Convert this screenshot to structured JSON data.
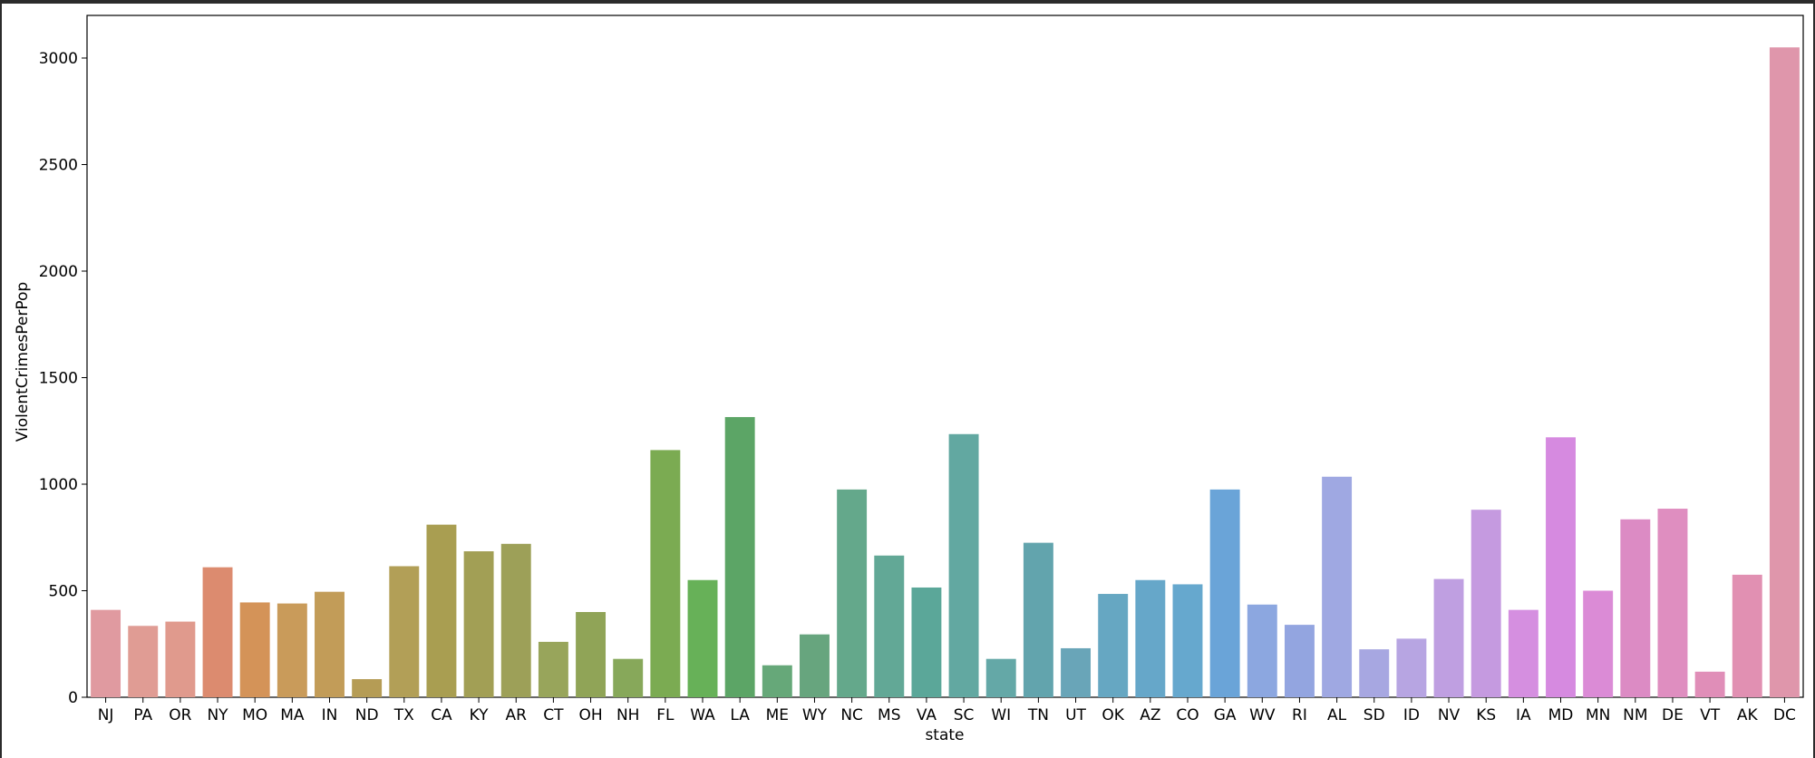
{
  "chart_data": {
    "type": "bar",
    "xlabel": "state",
    "ylabel": "ViolentCrimesPerPop",
    "ylim": [
      0,
      3200
    ],
    "yticks": [
      0,
      500,
      1000,
      1500,
      2000,
      2500,
      3000
    ],
    "grid": false,
    "legend": "none",
    "categories": [
      "NJ",
      "PA",
      "OR",
      "NY",
      "MO",
      "MA",
      "IN",
      "ND",
      "TX",
      "CA",
      "KY",
      "AR",
      "CT",
      "OH",
      "NH",
      "FL",
      "WA",
      "LA",
      "ME",
      "WY",
      "NC",
      "MS",
      "VA",
      "SC",
      "WI",
      "TN",
      "UT",
      "OK",
      "AZ",
      "CO",
      "GA",
      "WV",
      "RI",
      "AL",
      "SD",
      "ID",
      "NV",
      "KS",
      "IA",
      "MD",
      "MN",
      "NM",
      "DE",
      "VT",
      "AK",
      "DC"
    ],
    "values": [
      410,
      335,
      355,
      610,
      445,
      440,
      495,
      85,
      615,
      810,
      685,
      720,
      260,
      400,
      180,
      1160,
      550,
      1315,
      150,
      295,
      975,
      665,
      515,
      1235,
      180,
      725,
      230,
      485,
      550,
      530,
      975,
      435,
      340,
      1035,
      225,
      275,
      555,
      880,
      410,
      1220,
      500,
      835,
      885,
      120,
      575,
      3050
    ],
    "colors": [
      "#e09aa0",
      "#e09c94",
      "#e09a8d",
      "#dc8b6f",
      "#d49358",
      "#c99b5a",
      "#c29c58",
      "#b59c55",
      "#b29f57",
      "#a99e51",
      "#a29f55",
      "#9da058",
      "#98a55b",
      "#90a457",
      "#87a85a",
      "#7bab52",
      "#67b158",
      "#5ca566",
      "#66a879",
      "#67a57e",
      "#64a88b",
      "#62a896",
      "#5ba799",
      "#62a8a1",
      "#64a8a7",
      "#62a4ad",
      "#69a5b8",
      "#66a7c2",
      "#66a7c9",
      "#66a8ce",
      "#6aa4d8",
      "#8ca7e0",
      "#93a5e0",
      "#9fa8e2",
      "#a7a7e1",
      "#b7a5e2",
      "#bf9fe1",
      "#c59ae0",
      "#d58fe0",
      "#d68ae0",
      "#db8bd6",
      "#dc8bc4",
      "#df8ec0",
      "#e08eb8",
      "#e190b2",
      "#df96ab"
    ]
  }
}
